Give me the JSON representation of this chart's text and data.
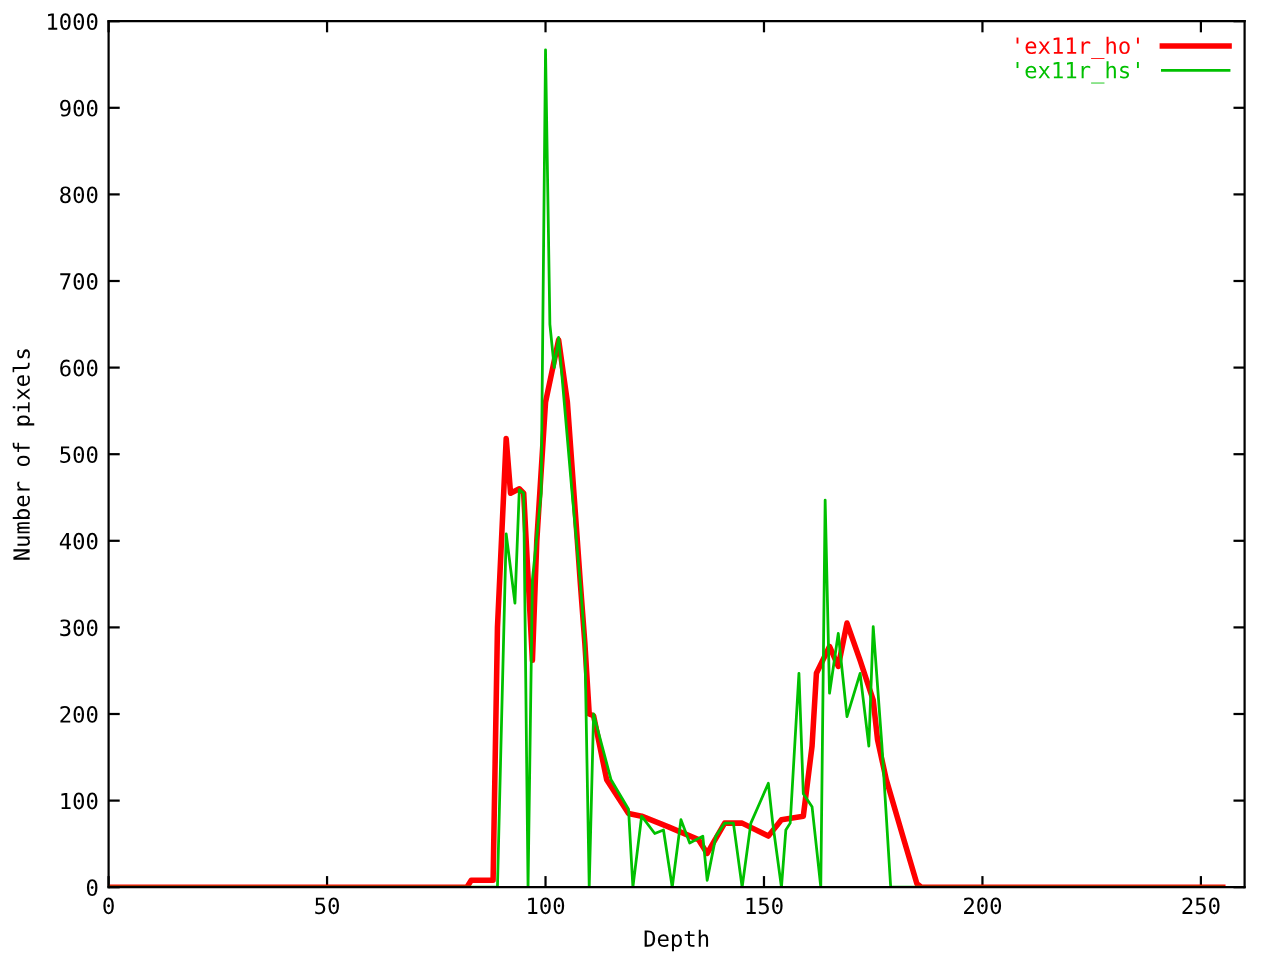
{
  "chart_data": {
    "type": "line",
    "xlabel": "Depth",
    "ylabel": "Number of pixels",
    "xlim": [
      0,
      260
    ],
    "xticks": [
      0,
      50,
      100,
      150,
      200,
      250
    ],
    "ylim": [
      0,
      1000
    ],
    "yticks": [
      0,
      100,
      200,
      300,
      400,
      500,
      600,
      700,
      800,
      900,
      1000
    ],
    "grid": false,
    "legend": "top right",
    "marker": "none",
    "line_style": "solid",
    "series": [
      {
        "name": "'ex11r_ho'",
        "color": "#ff0000",
        "x": [
          0,
          82,
          83,
          88,
          89,
          91,
          92,
          94,
          95,
          97,
          98,
          100,
          103,
          105,
          107,
          108,
          109,
          110,
          111,
          114,
          119,
          122,
          128,
          135,
          137,
          141,
          145,
          151,
          154,
          159,
          161,
          162,
          165,
          167,
          169,
          172,
          175,
          176,
          178,
          182,
          185,
          186,
          255
        ],
        "values": [
          0,
          0,
          8,
          8,
          300,
          518,
          455,
          460,
          455,
          262,
          400,
          560,
          632,
          560,
          420,
          349,
          282,
          200,
          198,
          124,
          85,
          82,
          70,
          55,
          39,
          74,
          74,
          59,
          78,
          82,
          163,
          247,
          278,
          255,
          305,
          262,
          216,
          170,
          124,
          55,
          4,
          0,
          0
        ]
      },
      {
        "name": "'ex11r_hs'",
        "color": "#00c000",
        "x": [
          0,
          89,
          91,
          93,
          94,
          95,
          96,
          97,
          99,
          100,
          101,
          102,
          103,
          106,
          108,
          109,
          110,
          111,
          115,
          119,
          120,
          122,
          125,
          127,
          129,
          131,
          133,
          136,
          137,
          139,
          141,
          143,
          145,
          147,
          149,
          151,
          152,
          154,
          155,
          156,
          158,
          159,
          161,
          163,
          164,
          165,
          167,
          169,
          172,
          174,
          175,
          177,
          179,
          255
        ],
        "values": [
          0,
          0,
          408,
          328,
          459,
          455,
          0,
          355,
          455,
          967,
          650,
          600,
          635,
          460,
          349,
          282,
          0,
          200,
          124,
          90,
          0,
          82,
          62,
          66,
          0,
          78,
          51,
          59,
          8,
          59,
          74,
          74,
          0,
          74,
          97,
          120,
          74,
          0,
          66,
          74,
          247,
          108,
          93,
          0,
          447,
          224,
          293,
          197,
          247,
          163,
          301,
          163,
          0,
          0
        ]
      }
    ]
  }
}
